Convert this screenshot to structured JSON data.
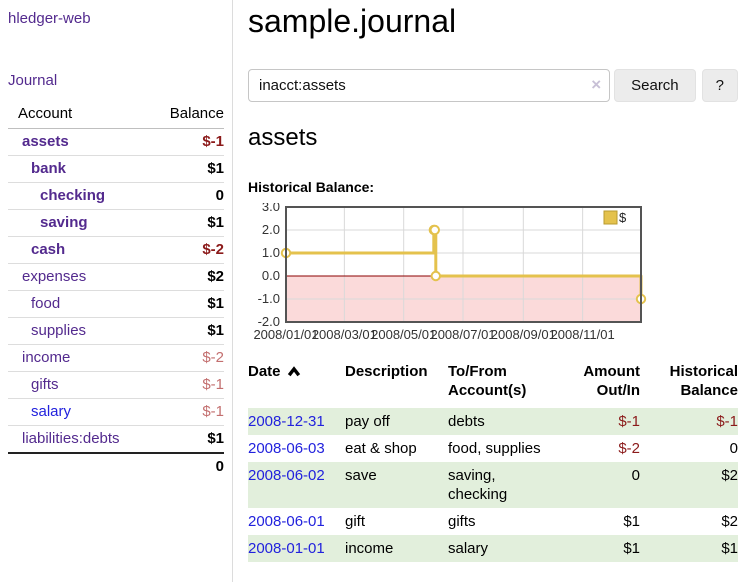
{
  "sidebar": {
    "brand": "hledger-web",
    "journal_link": "Journal",
    "accounts_table": {
      "header_account": "Account",
      "header_balance": "Balance",
      "rows": [
        {
          "name": "assets",
          "indent": 0,
          "bold": true,
          "link_color": "purple",
          "balance": "$-1",
          "balance_style": "neg-strong"
        },
        {
          "name": "bank",
          "indent": 1,
          "bold": true,
          "link_color": "purple",
          "balance": "$1",
          "balance_style": "pos"
        },
        {
          "name": "checking",
          "indent": 2,
          "bold": true,
          "link_color": "purple",
          "balance": "0",
          "balance_style": "pos"
        },
        {
          "name": "saving",
          "indent": 2,
          "bold": true,
          "link_color": "purple",
          "balance": "$1",
          "balance_style": "pos"
        },
        {
          "name": "cash",
          "indent": 1,
          "bold": true,
          "link_color": "purple",
          "balance": "$-2",
          "balance_style": "neg-strong"
        },
        {
          "name": "expenses",
          "indent": 0,
          "bold": false,
          "link_color": "purple",
          "balance": "$2",
          "balance_style": "pos"
        },
        {
          "name": "food",
          "indent": 1,
          "bold": false,
          "link_color": "purple",
          "balance": "$1",
          "balance_style": "pos"
        },
        {
          "name": "supplies",
          "indent": 1,
          "bold": false,
          "link_color": "purple",
          "balance": "$1",
          "balance_style": "pos"
        },
        {
          "name": "income",
          "indent": 0,
          "bold": false,
          "link_color": "purple",
          "balance": "$-2",
          "balance_style": "neg-soft"
        },
        {
          "name": "gifts",
          "indent": 1,
          "bold": false,
          "link_color": "purple",
          "balance": "$-1",
          "balance_style": "neg-soft"
        },
        {
          "name": "salary",
          "indent": 1,
          "bold": false,
          "link_color": "blue",
          "balance": "$-1",
          "balance_style": "neg-soft"
        },
        {
          "name": "liabilities:debts",
          "indent": 0,
          "bold": false,
          "link_color": "purple",
          "balance": "$1",
          "balance_style": "pos"
        }
      ],
      "total": "0"
    }
  },
  "header": {
    "title": "sample.journal"
  },
  "search": {
    "value": "inacct:assets",
    "clear_icon": "×",
    "search_label": "Search",
    "help_label": "?"
  },
  "account_page": {
    "heading": "assets",
    "chart_label": "Historical Balance:"
  },
  "chart_data": {
    "type": "line",
    "title": "Historical Balance:",
    "step": true,
    "x_range": [
      "2008-01-01",
      "2008-12-31"
    ],
    "ylim": [
      -2,
      3
    ],
    "y_ticks": [
      3.0,
      2.0,
      1.0,
      0.0,
      -1.0,
      -2.0
    ],
    "x_ticks": [
      "2008/01/01",
      "2008/03/01",
      "2008/05/01",
      "2008/07/01",
      "2008/09/01",
      "2008/11/01"
    ],
    "series": [
      {
        "name": "$",
        "color": "#e4c24d",
        "points": [
          [
            "2008-01-01",
            1
          ],
          [
            "2008-06-01",
            2
          ],
          [
            "2008-06-02",
            2
          ],
          [
            "2008-06-03",
            0
          ],
          [
            "2008-12-31",
            -1
          ]
        ]
      }
    ],
    "legend_position": "top-right",
    "grid": true,
    "colors": {
      "negative_fill": "#fbdada",
      "zero_line": "#8b0000",
      "grid": "#d9d9d9",
      "border": "#545454",
      "legend_border": "#b89b2e",
      "tick_text": "#333333"
    }
  },
  "register": {
    "headers": {
      "date": "Date",
      "description": "Description",
      "accounts_line1": "To/From",
      "accounts_line2": "Account(s)",
      "amount_line1": "Amount",
      "amount_line2": "Out/In",
      "balance_line1": "Historical",
      "balance_line2": "Balance"
    },
    "sort_icon": "chevron-up",
    "rows": [
      {
        "date": "2008-12-31",
        "description": "pay off",
        "accounts": "debts",
        "amount": "$-1",
        "amount_neg": true,
        "balance": "$-1",
        "balance_neg": true,
        "shade": true
      },
      {
        "date": "2008-06-03",
        "description": "eat & shop",
        "accounts": "food, supplies",
        "amount": "$-2",
        "amount_neg": true,
        "balance": "0",
        "balance_neg": false,
        "shade": false
      },
      {
        "date": "2008-06-02",
        "description": "save",
        "accounts": "saving, checking",
        "amount": "0",
        "amount_neg": false,
        "balance": "$2",
        "balance_neg": false,
        "shade": true
      },
      {
        "date": "2008-06-01",
        "description": "gift",
        "accounts": "gifts",
        "amount": "$1",
        "amount_neg": false,
        "balance": "$2",
        "balance_neg": false,
        "shade": false
      },
      {
        "date": "2008-01-01",
        "description": "income",
        "accounts": "salary",
        "amount": "$1",
        "amount_neg": false,
        "balance": "$1",
        "balance_neg": false,
        "shade": true
      }
    ]
  },
  "colors": {
    "link_purple": "#532a8e",
    "link_blue": "#2222dd",
    "negative_strong": "#8b1a1a",
    "negative_soft": "#c36f6f",
    "row_green": "#e2efdc",
    "chart_line": "#e4c24d"
  }
}
